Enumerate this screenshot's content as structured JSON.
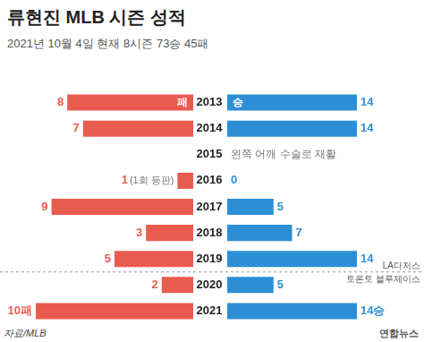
{
  "title": "류현진 MLB 시즌 성적",
  "subtitle": "2021년 10월 4일 현재 8시즌 73승 45패",
  "source": "자료/MLB",
  "credit": "연합뉴스",
  "teams": [
    {
      "name": "LA다저스",
      "categories": [
        "2013",
        "2014",
        "2015",
        "2016",
        "2017",
        "2018",
        "2019"
      ]
    },
    {
      "name": "토론토 블루제이스",
      "categories": [
        "2020",
        "2021"
      ]
    }
  ],
  "chart_data": [
    {
      "type": "bar",
      "orientation": "horizontal",
      "categories": [
        "2013",
        "2014",
        "2015",
        "2016",
        "2017",
        "2018",
        "2019",
        "2020",
        "2021"
      ],
      "series": [
        {
          "name": "패",
          "color": "#e95b4f",
          "values": [
            8,
            7,
            null,
            1,
            9,
            3,
            5,
            2,
            10
          ],
          "value_labels": [
            "8",
            "7",
            null,
            "1",
            "9",
            "3",
            "5",
            "2",
            "10패"
          ]
        }
      ],
      "xlim": [
        0,
        10
      ],
      "grid": false,
      "data_labels": true,
      "tick_labels": "y",
      "annotations": [
        {
          "text": "(1회 등판)",
          "category": "2016"
        }
      ]
    },
    {
      "type": "bar",
      "orientation": "horizontal",
      "categories": [
        "2013",
        "2014",
        "2015",
        "2016",
        "2017",
        "2018",
        "2019",
        "2020",
        "2021"
      ],
      "series": [
        {
          "name": "승",
          "color": "#2c8fd6",
          "values": [
            14,
            14,
            null,
            0,
            5,
            7,
            14,
            5,
            14
          ],
          "value_labels": [
            "14",
            "14",
            null,
            "0",
            "5",
            "7",
            "14",
            "5",
            "14승"
          ]
        }
      ],
      "xlim": [
        0,
        14
      ],
      "grid": false,
      "data_labels": true,
      "tick_labels": false,
      "annotations": [
        {
          "text": "왼쪽 어깨 수술로 재활",
          "category": "2015"
        }
      ]
    }
  ]
}
